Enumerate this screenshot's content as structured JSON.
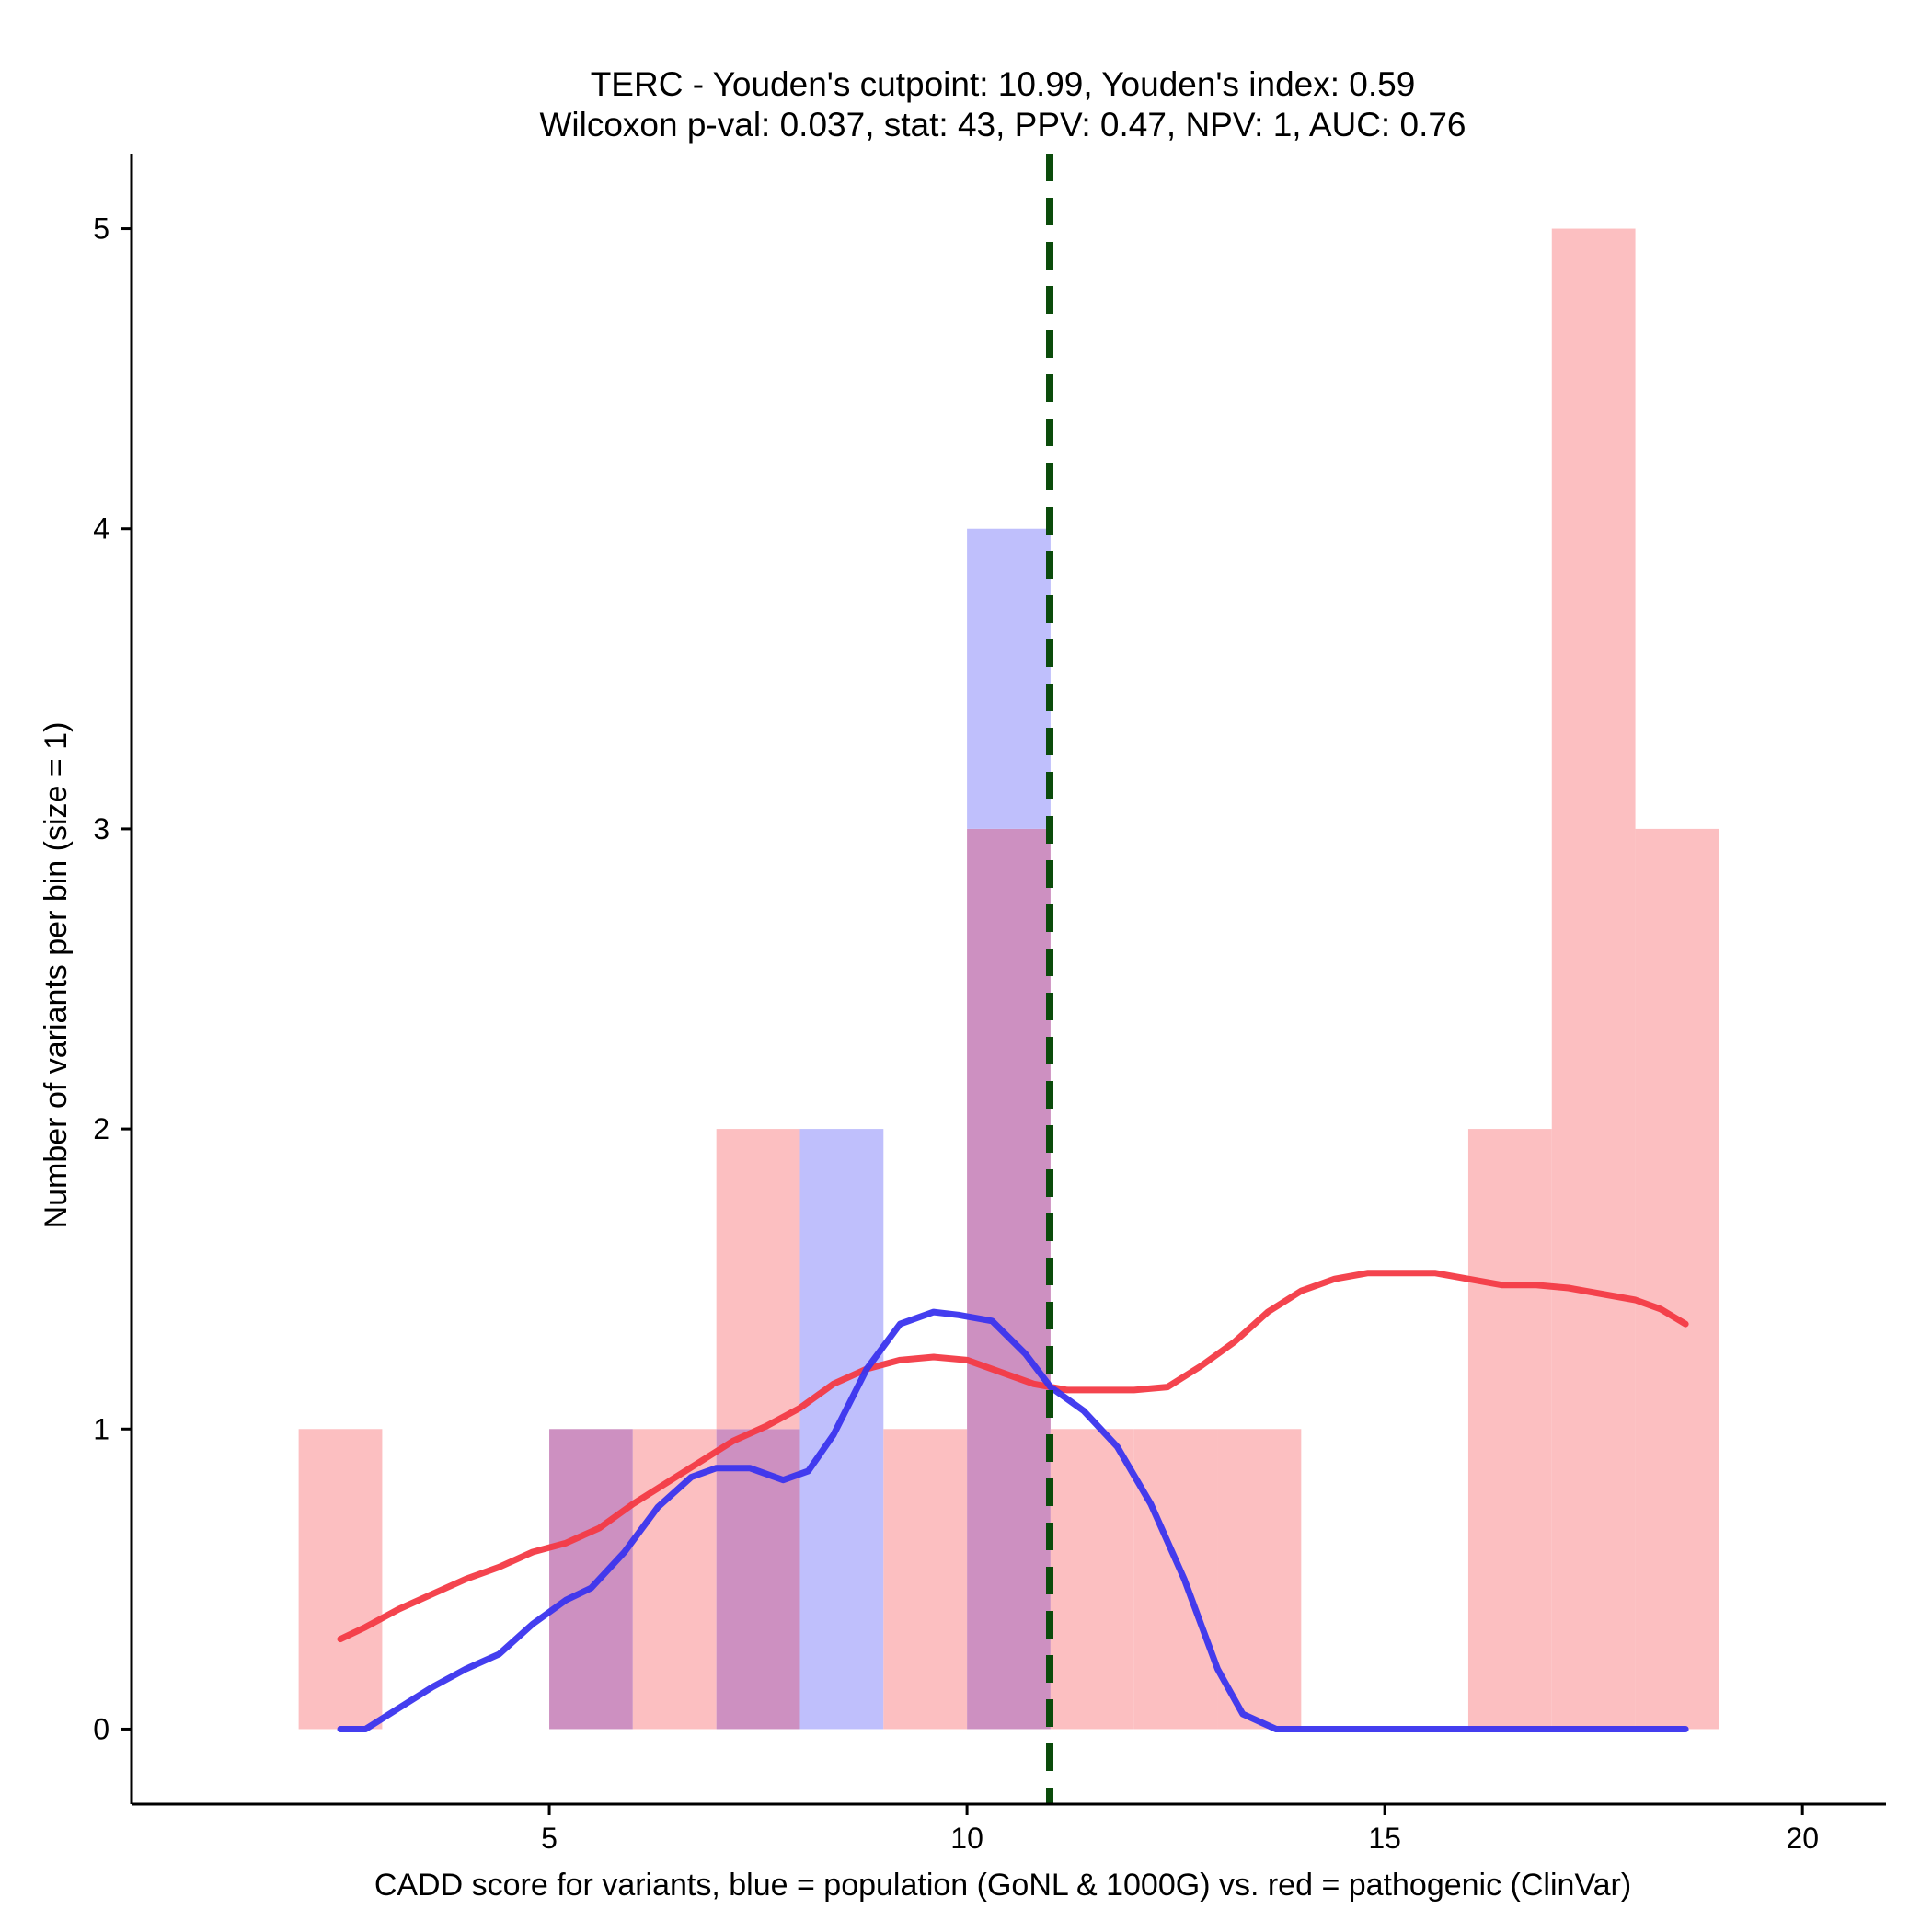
{
  "chart_data": {
    "type": "histogram",
    "title": "TERC - Youden's cutpoint: 10.99, Youden's index: 0.59",
    "subtitle": "Wilcoxon p-val: 0.037, stat: 43, PPV: 0.47, NPV: 1, AUC: 0.76",
    "xlabel": "CADD score for variants, blue = population (GoNL & 1000G) vs. red = pathogenic (ClinVar)",
    "ylabel": "Number of variants per bin (size = 1)",
    "xlim": [
      0,
      21
    ],
    "ylim": [
      -0.25,
      5.25
    ],
    "x_ticks": [
      5,
      10,
      15,
      20
    ],
    "y_ticks": [
      0,
      1,
      2,
      3,
      4,
      5
    ],
    "grid": false,
    "bin_size": 1,
    "cutpoint": 10.99,
    "colors": {
      "population_fill": "#bfbffc",
      "pathogenic_fill": "#fcbfc1",
      "overlap_fill": "#cd90c1",
      "population_line": "#3a34ee",
      "pathogenic_line": "#f33a45",
      "cutpoint_line": "#0b4b0b",
      "axis": "#000000"
    },
    "series": [
      {
        "name": "population",
        "bins": [
          {
            "x0": 5,
            "x1": 6,
            "count": 1
          },
          {
            "x0": 7,
            "x1": 8,
            "count": 1
          },
          {
            "x0": 8,
            "x1": 9,
            "count": 2
          },
          {
            "x0": 10,
            "x1": 11,
            "count": 4
          }
        ],
        "density_curve": [
          [
            2.5,
            0
          ],
          [
            2.8,
            0
          ],
          [
            3.2,
            0.07
          ],
          [
            3.6,
            0.14
          ],
          [
            4.0,
            0.2
          ],
          [
            4.4,
            0.25
          ],
          [
            4.8,
            0.35
          ],
          [
            5.2,
            0.43
          ],
          [
            5.5,
            0.47
          ],
          [
            5.9,
            0.59
          ],
          [
            6.3,
            0.74
          ],
          [
            6.7,
            0.84
          ],
          [
            7.0,
            0.87
          ],
          [
            7.4,
            0.87
          ],
          [
            7.8,
            0.83
          ],
          [
            8.1,
            0.86
          ],
          [
            8.4,
            0.98
          ],
          [
            8.8,
            1.2
          ],
          [
            9.2,
            1.35
          ],
          [
            9.6,
            1.39
          ],
          [
            9.9,
            1.38
          ],
          [
            10.3,
            1.36
          ],
          [
            10.7,
            1.25
          ],
          [
            11.0,
            1.14
          ],
          [
            11.4,
            1.06
          ],
          [
            11.8,
            0.94
          ],
          [
            12.2,
            0.75
          ],
          [
            12.6,
            0.5
          ],
          [
            13.0,
            0.2
          ],
          [
            13.3,
            0.05
          ],
          [
            13.7,
            0
          ],
          [
            15.0,
            0
          ],
          [
            18.6,
            0
          ]
        ]
      },
      {
        "name": "pathogenic",
        "bins": [
          {
            "x0": 2,
            "x1": 3,
            "count": 1
          },
          {
            "x0": 5,
            "x1": 6,
            "count": 1
          },
          {
            "x0": 6,
            "x1": 7,
            "count": 1
          },
          {
            "x0": 7,
            "x1": 8,
            "count": 2
          },
          {
            "x0": 9,
            "x1": 10,
            "count": 1
          },
          {
            "x0": 10,
            "x1": 11,
            "count": 3
          },
          {
            "x0": 11,
            "x1": 12,
            "count": 1
          },
          {
            "x0": 12,
            "x1": 13,
            "count": 1
          },
          {
            "x0": 13,
            "x1": 14,
            "count": 1
          },
          {
            "x0": 16,
            "x1": 17,
            "count": 2
          },
          {
            "x0": 17,
            "x1": 18,
            "count": 5
          },
          {
            "x0": 18,
            "x1": 19,
            "count": 3
          }
        ],
        "density_curve": [
          [
            2.5,
            0.3
          ],
          [
            2.8,
            0.34
          ],
          [
            3.2,
            0.4
          ],
          [
            3.6,
            0.45
          ],
          [
            4.0,
            0.5
          ],
          [
            4.4,
            0.54
          ],
          [
            4.8,
            0.59
          ],
          [
            5.2,
            0.62
          ],
          [
            5.6,
            0.67
          ],
          [
            6.0,
            0.75
          ],
          [
            6.4,
            0.82
          ],
          [
            6.8,
            0.89
          ],
          [
            7.2,
            0.96
          ],
          [
            7.6,
            1.01
          ],
          [
            8.0,
            1.07
          ],
          [
            8.4,
            1.15
          ],
          [
            8.8,
            1.2
          ],
          [
            9.2,
            1.23
          ],
          [
            9.6,
            1.24
          ],
          [
            10.0,
            1.23
          ],
          [
            10.4,
            1.19
          ],
          [
            10.8,
            1.15
          ],
          [
            11.2,
            1.13
          ],
          [
            11.6,
            1.13
          ],
          [
            12.0,
            1.13
          ],
          [
            12.4,
            1.14
          ],
          [
            12.8,
            1.21
          ],
          [
            13.2,
            1.29
          ],
          [
            13.6,
            1.39
          ],
          [
            14.0,
            1.46
          ],
          [
            14.4,
            1.5
          ],
          [
            14.8,
            1.52
          ],
          [
            15.2,
            1.52
          ],
          [
            15.6,
            1.52
          ],
          [
            16.0,
            1.5
          ],
          [
            16.4,
            1.48
          ],
          [
            16.8,
            1.48
          ],
          [
            17.2,
            1.47
          ],
          [
            17.6,
            1.45
          ],
          [
            18.0,
            1.43
          ],
          [
            18.3,
            1.4
          ],
          [
            18.6,
            1.35
          ]
        ]
      }
    ]
  }
}
